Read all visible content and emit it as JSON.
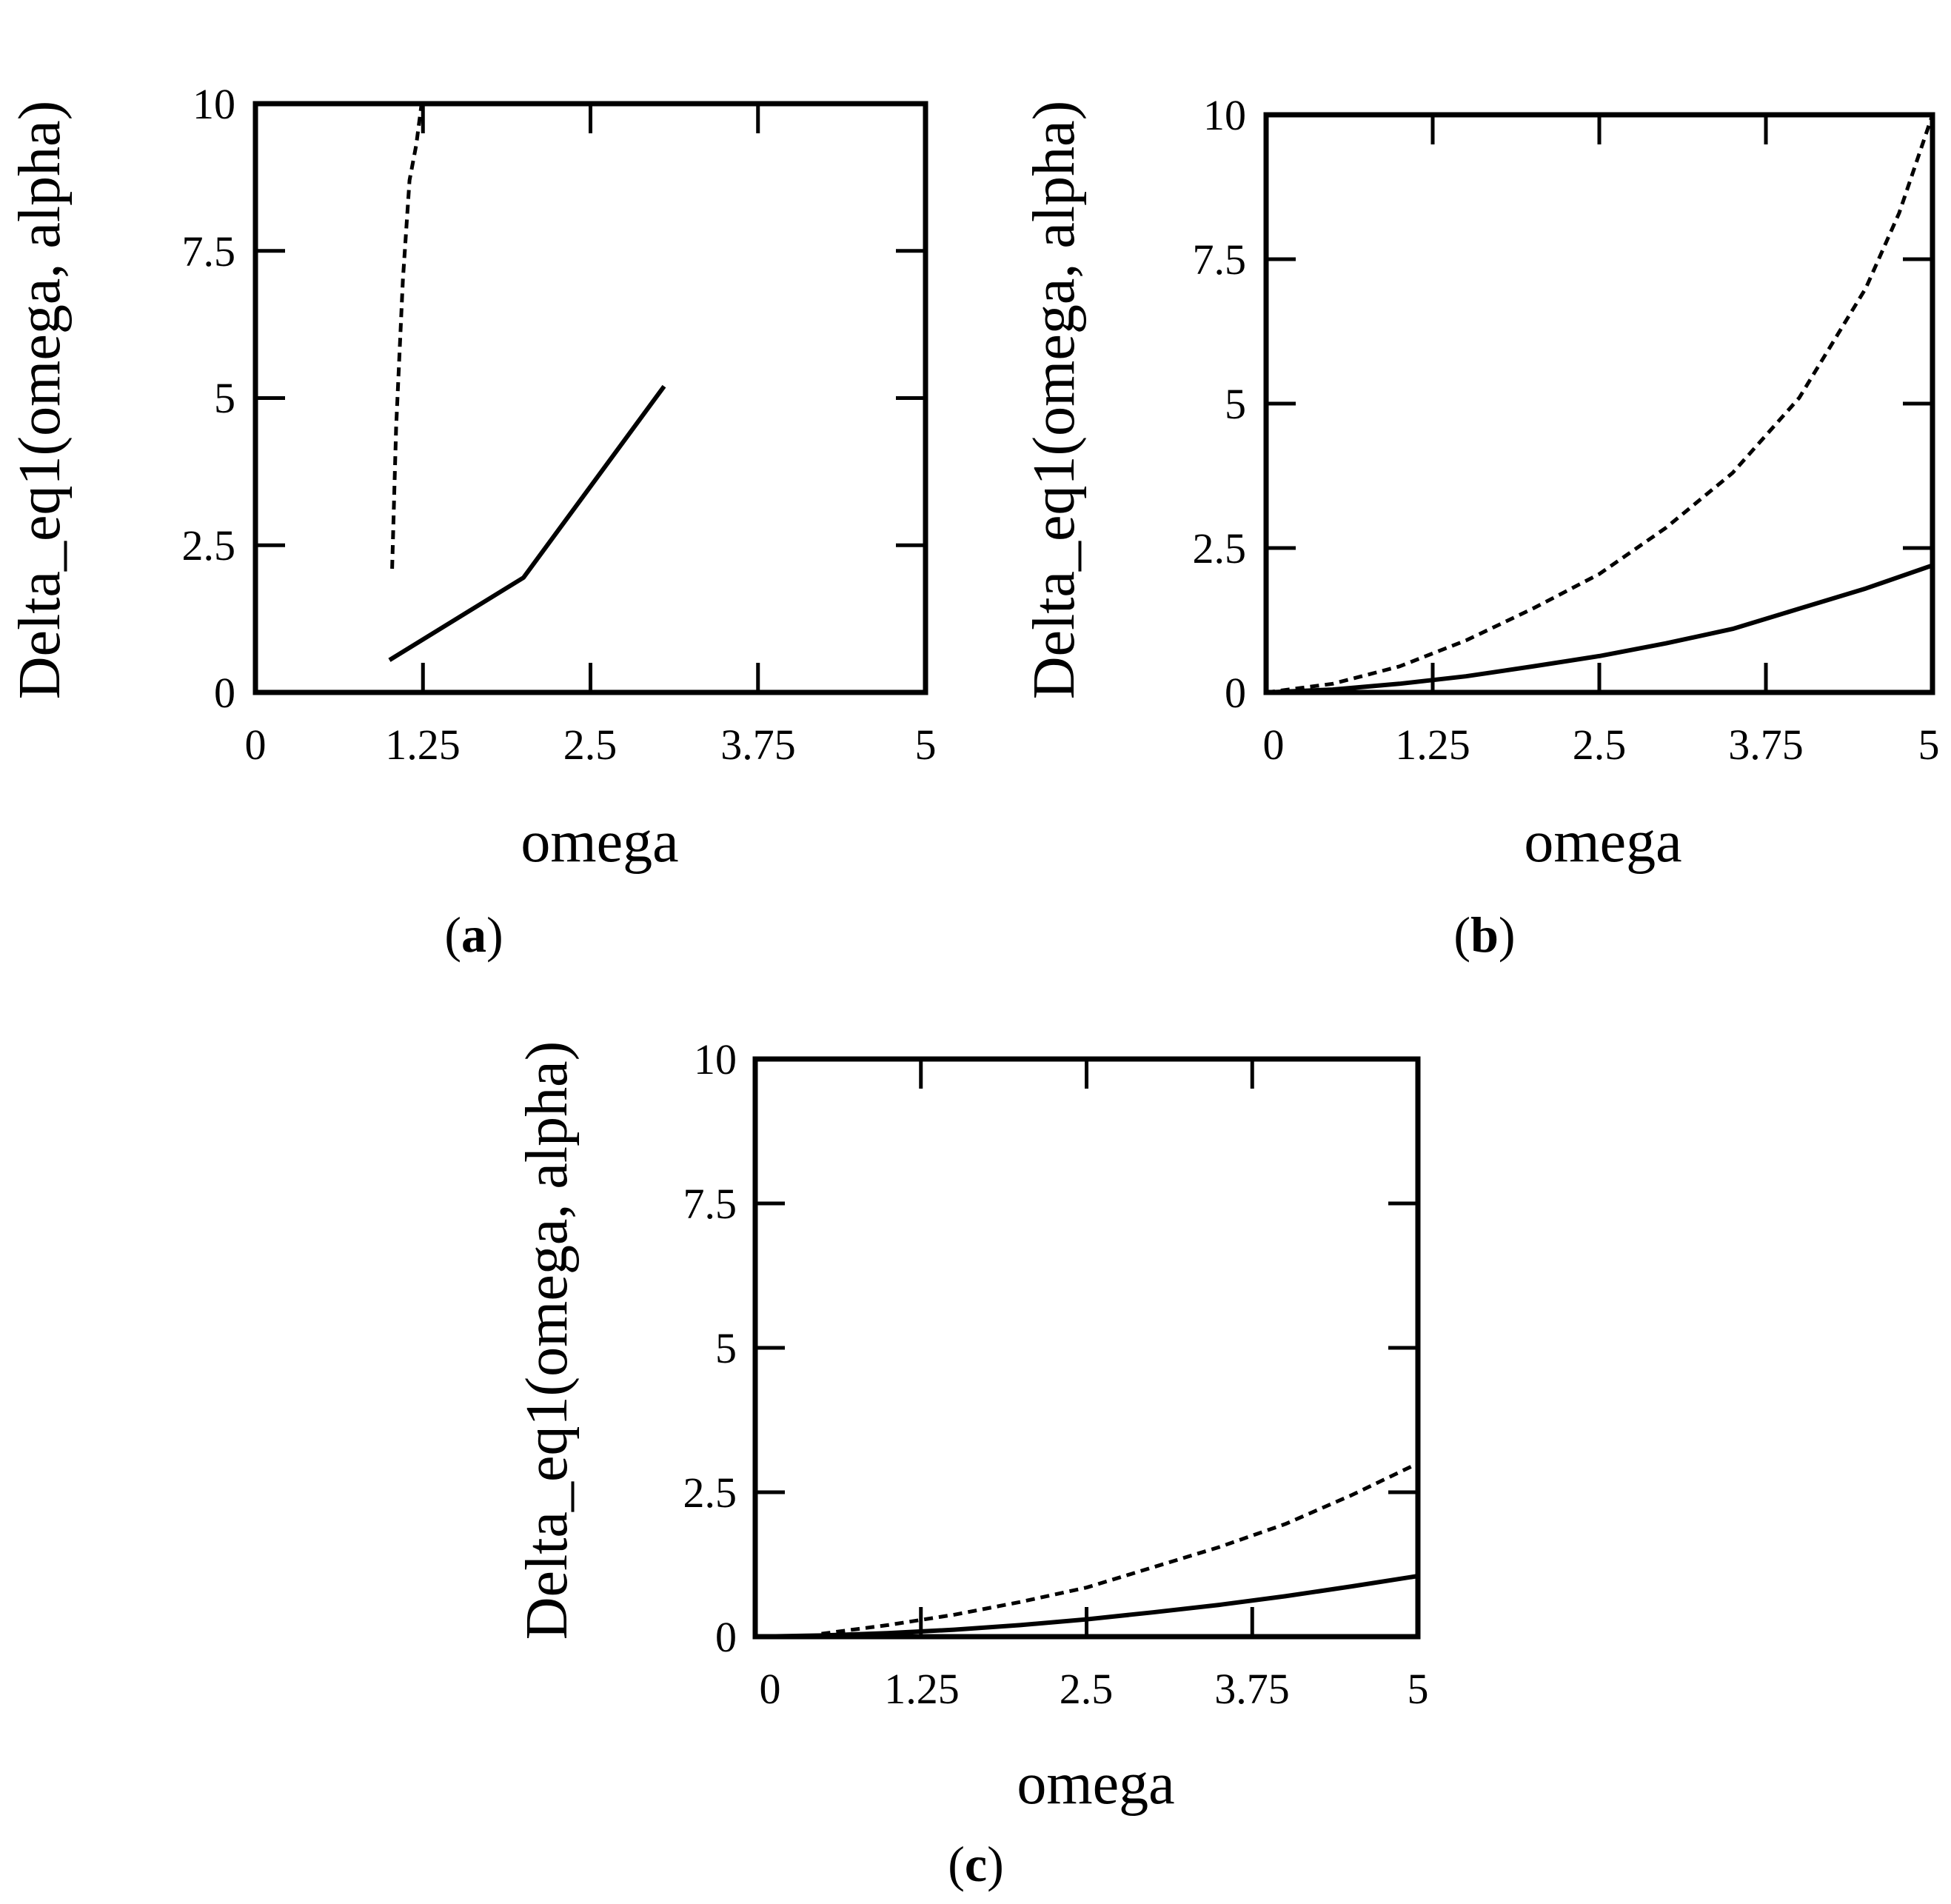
{
  "colors": {
    "line": "#000000",
    "background": "#ffffff"
  },
  "chart_data": [
    {
      "id": "a",
      "panel_label_open": "(",
      "panel_label": "a",
      "panel_label_close": ")",
      "type": "line",
      "title": "",
      "xlabel": "omega",
      "ylabel": "Delta_eq1(omega, alpha)",
      "xlim": [
        0,
        5
      ],
      "ylim": [
        0,
        10
      ],
      "xticks": [
        "0",
        "1.25",
        "2.5",
        "3.75",
        "5"
      ],
      "yticks": [
        "0",
        "2.5",
        "5",
        "7.5",
        "10"
      ],
      "series": [
        {
          "name": "solid",
          "style": "solid",
          "x": [
            1,
            2,
            3.05
          ],
          "y": [
            0.55,
            1.95,
            5.2
          ]
        },
        {
          "name": "dashed",
          "style": "dashed",
          "x": [
            1.02,
            1.05,
            1.1,
            1.15,
            1.2,
            1.24
          ],
          "y": [
            2.1,
            4.5,
            7.0,
            8.7,
            9.3,
            10
          ]
        }
      ]
    },
    {
      "id": "b",
      "panel_label_open": "(",
      "panel_label": "b",
      "panel_label_close": ")",
      "type": "line",
      "title": "",
      "xlabel": "omega",
      "ylabel": "Delta_eq1(omega, alpha)",
      "xlim": [
        0,
        5
      ],
      "ylim": [
        0,
        10
      ],
      "xticks": [
        "0",
        "1.25",
        "2.5",
        "3.75",
        "5"
      ],
      "yticks": [
        "0",
        "2.5",
        "5",
        "7.5",
        "10"
      ],
      "series": [
        {
          "name": "solid",
          "style": "solid",
          "x": [
            0,
            0.5,
            1,
            1.5,
            2,
            2.5,
            3,
            3.5,
            4,
            4.5,
            5
          ],
          "y": [
            0,
            0.05,
            0.15,
            0.28,
            0.45,
            0.63,
            0.85,
            1.1,
            1.45,
            1.8,
            2.2
          ]
        },
        {
          "name": "dashed",
          "style": "dashed",
          "x": [
            0,
            0.5,
            1,
            1.5,
            2,
            2.5,
            3,
            3.5,
            4,
            4.5,
            4.75,
            5
          ],
          "y": [
            0,
            0.15,
            0.45,
            0.9,
            1.45,
            2.05,
            2.85,
            3.8,
            5.1,
            7.0,
            8.3,
            10
          ]
        }
      ]
    },
    {
      "id": "c",
      "panel_label_open": "(",
      "panel_label": "c",
      "panel_label_close": ")",
      "type": "line",
      "title": "",
      "xlabel": "omega",
      "ylabel": "Delta_eq1(omega, alpha)",
      "xlim": [
        0,
        5
      ],
      "ylim": [
        0,
        10
      ],
      "xticks": [
        "0",
        "1.25",
        "2.5",
        "3.75",
        "5"
      ],
      "yticks": [
        "0",
        "2.5",
        "5",
        "7.5",
        "10"
      ],
      "series": [
        {
          "name": "solid",
          "style": "solid",
          "x": [
            0,
            0.5,
            1,
            1.5,
            2,
            2.5,
            3,
            3.5,
            4,
            4.5,
            5
          ],
          "y": [
            0,
            0.02,
            0.06,
            0.12,
            0.2,
            0.3,
            0.42,
            0.55,
            0.7,
            0.87,
            1.05
          ]
        },
        {
          "name": "dashed",
          "style": "dashed",
          "x": [
            0.5,
            1,
            1.5,
            2,
            2.5,
            3,
            3.5,
            4,
            4.5,
            5
          ],
          "y": [
            0.05,
            0.2,
            0.38,
            0.6,
            0.85,
            1.2,
            1.55,
            1.95,
            2.45,
            3.0
          ]
        }
      ]
    }
  ]
}
